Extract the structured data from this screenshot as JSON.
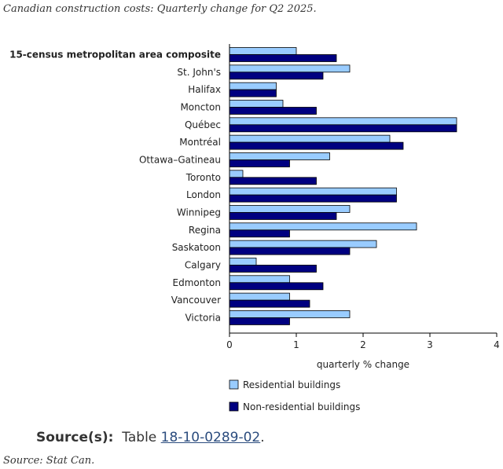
{
  "caption_top": "Canadian construction costs: Quarterly change for Q2 2025.",
  "caption_bottom": "Source: Stat Can.",
  "source": {
    "label": "Source(s):",
    "prefix": "Table",
    "link_text": "18-10-0289-02",
    "suffix": "."
  },
  "colors": {
    "residential": "#99ccff",
    "non_residential": "#000080",
    "bar_outline": "#000000",
    "axis": "#000000"
  },
  "chart_data": {
    "type": "bar",
    "orientation": "horizontal",
    "categories": [
      "15-census metropolitan area composite",
      "St. John's",
      "Halifax",
      "Moncton",
      "Québec",
      "Montréal",
      "Ottawa–Gatineau",
      "Toronto",
      "London",
      "Winnipeg",
      "Regina",
      "Saskatoon",
      "Calgary",
      "Edmonton",
      "Vancouver",
      "Victoria"
    ],
    "bold_category": "15-census metropolitan area composite",
    "series": [
      {
        "name": "Residential buildings",
        "color": "#99ccff",
        "values": [
          1.0,
          1.8,
          0.7,
          0.8,
          3.4,
          2.4,
          1.5,
          0.2,
          2.5,
          1.8,
          2.8,
          2.2,
          0.4,
          0.9,
          0.9,
          1.8
        ]
      },
      {
        "name": "Non-residential buildings",
        "color": "#000080",
        "values": [
          1.6,
          1.4,
          0.7,
          1.3,
          3.4,
          2.6,
          0.9,
          1.3,
          2.5,
          1.6,
          0.9,
          1.8,
          1.3,
          1.4,
          1.2,
          0.9
        ]
      }
    ],
    "xlabel": "quarterly % change",
    "ylabel": "",
    "xlim": [
      0,
      4
    ],
    "xticks": [
      "0",
      "1",
      "2",
      "3",
      "4"
    ],
    "grid": false,
    "legend_position": "bottom-left"
  }
}
